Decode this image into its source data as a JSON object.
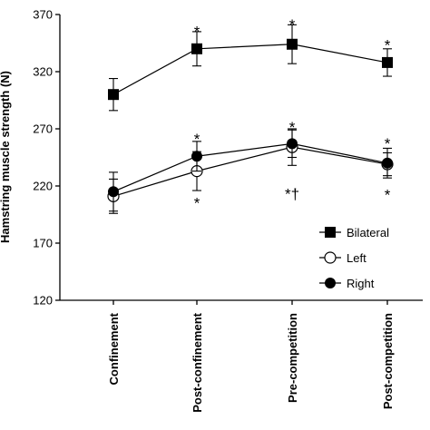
{
  "chart_data": {
    "type": "line",
    "ylabel": "Hamstring muscle strength (N)",
    "ylim": [
      120,
      370
    ],
    "yticks": [
      "120",
      "170",
      "220",
      "270",
      "320",
      "370"
    ],
    "categories": [
      "Confinement",
      "Post-confinement",
      "Pre-competition",
      "Post-competition"
    ],
    "series": [
      {
        "name": "Bilateral",
        "marker": "filled-square",
        "values": [
          300,
          340,
          344,
          328
        ],
        "error": [
          14,
          15,
          17,
          12
        ],
        "color": "#000000"
      },
      {
        "name": "Left",
        "marker": "open-circle",
        "values": [
          211,
          233,
          254,
          239
        ],
        "error": [
          15,
          17,
          16,
          10
        ],
        "color": "#000000"
      },
      {
        "name": "Right",
        "marker": "filled-circle",
        "values": [
          215,
          246,
          257,
          240
        ],
        "error": [
          17,
          13,
          12,
          13
        ],
        "color": "#000000"
      }
    ],
    "annotations": [
      {
        "category_index": 1,
        "y": 357,
        "text": "*"
      },
      {
        "category_index": 2,
        "y": 363,
        "text": "*"
      },
      {
        "category_index": 3,
        "y": 345,
        "text": "*"
      },
      {
        "category_index": 1,
        "y": 263,
        "text": "*"
      },
      {
        "category_index": 2,
        "y": 273,
        "text": "*"
      },
      {
        "category_index": 3,
        "y": 259,
        "text": "*"
      },
      {
        "category_index": 1,
        "y": 207,
        "text": "*"
      },
      {
        "category_index": 2,
        "y": 215,
        "text": "*†"
      },
      {
        "category_index": 3,
        "y": 214,
        "text": "*"
      }
    ],
    "legend": {
      "position": "bottom-right",
      "entries": [
        "Bilateral",
        "Left",
        "Right"
      ]
    },
    "grid": false
  }
}
